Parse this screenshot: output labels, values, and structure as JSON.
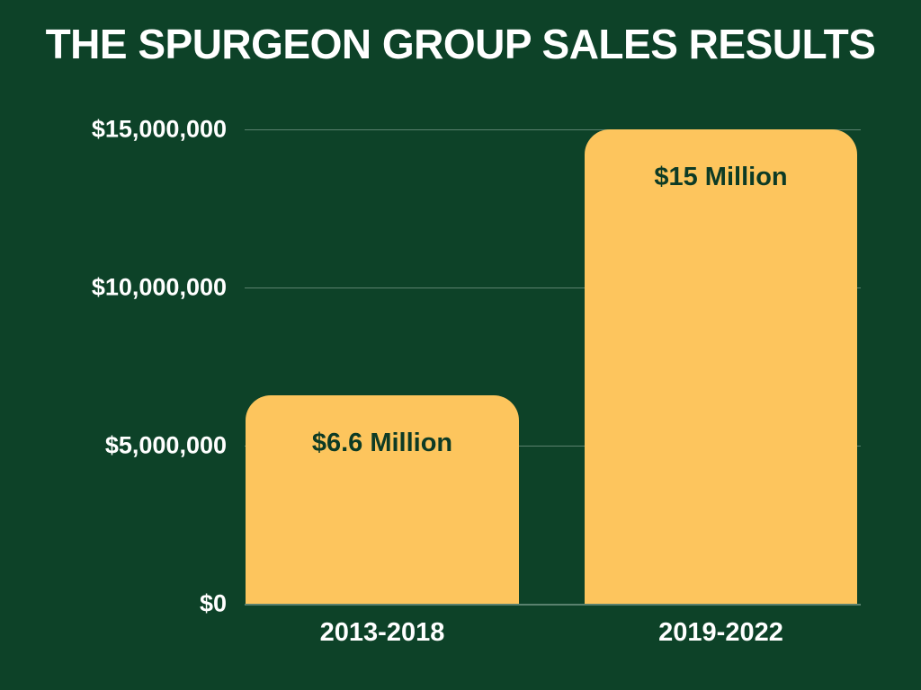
{
  "title": "THE SPURGEON GROUP SALES RESULTS",
  "colors": {
    "background": "#0D4228",
    "bar": "#FDC55D",
    "bar_label": "#0D3B25",
    "axis_text": "#FFFFFF",
    "gridline": "rgba(235,245,240,0.35)"
  },
  "chart_data": {
    "type": "bar",
    "title": "THE SPURGEON GROUP SALES RESULTS",
    "categories": [
      "2013-2018",
      "2019-2022"
    ],
    "values": [
      6600000,
      15000000
    ],
    "data_labels": [
      "$6.6 Million",
      "$15 Million"
    ],
    "y_ticks": [
      {
        "value": 15000000,
        "label": "$15,000,000"
      },
      {
        "value": 10000000,
        "label": "$10,000,000"
      },
      {
        "value": 5000000,
        "label": "$5,000,000"
      },
      {
        "value": 0,
        "label": "$0"
      }
    ],
    "ylim": [
      0,
      15000000
    ],
    "xlabel": "",
    "ylabel": "",
    "grid": true,
    "legend": false
  }
}
